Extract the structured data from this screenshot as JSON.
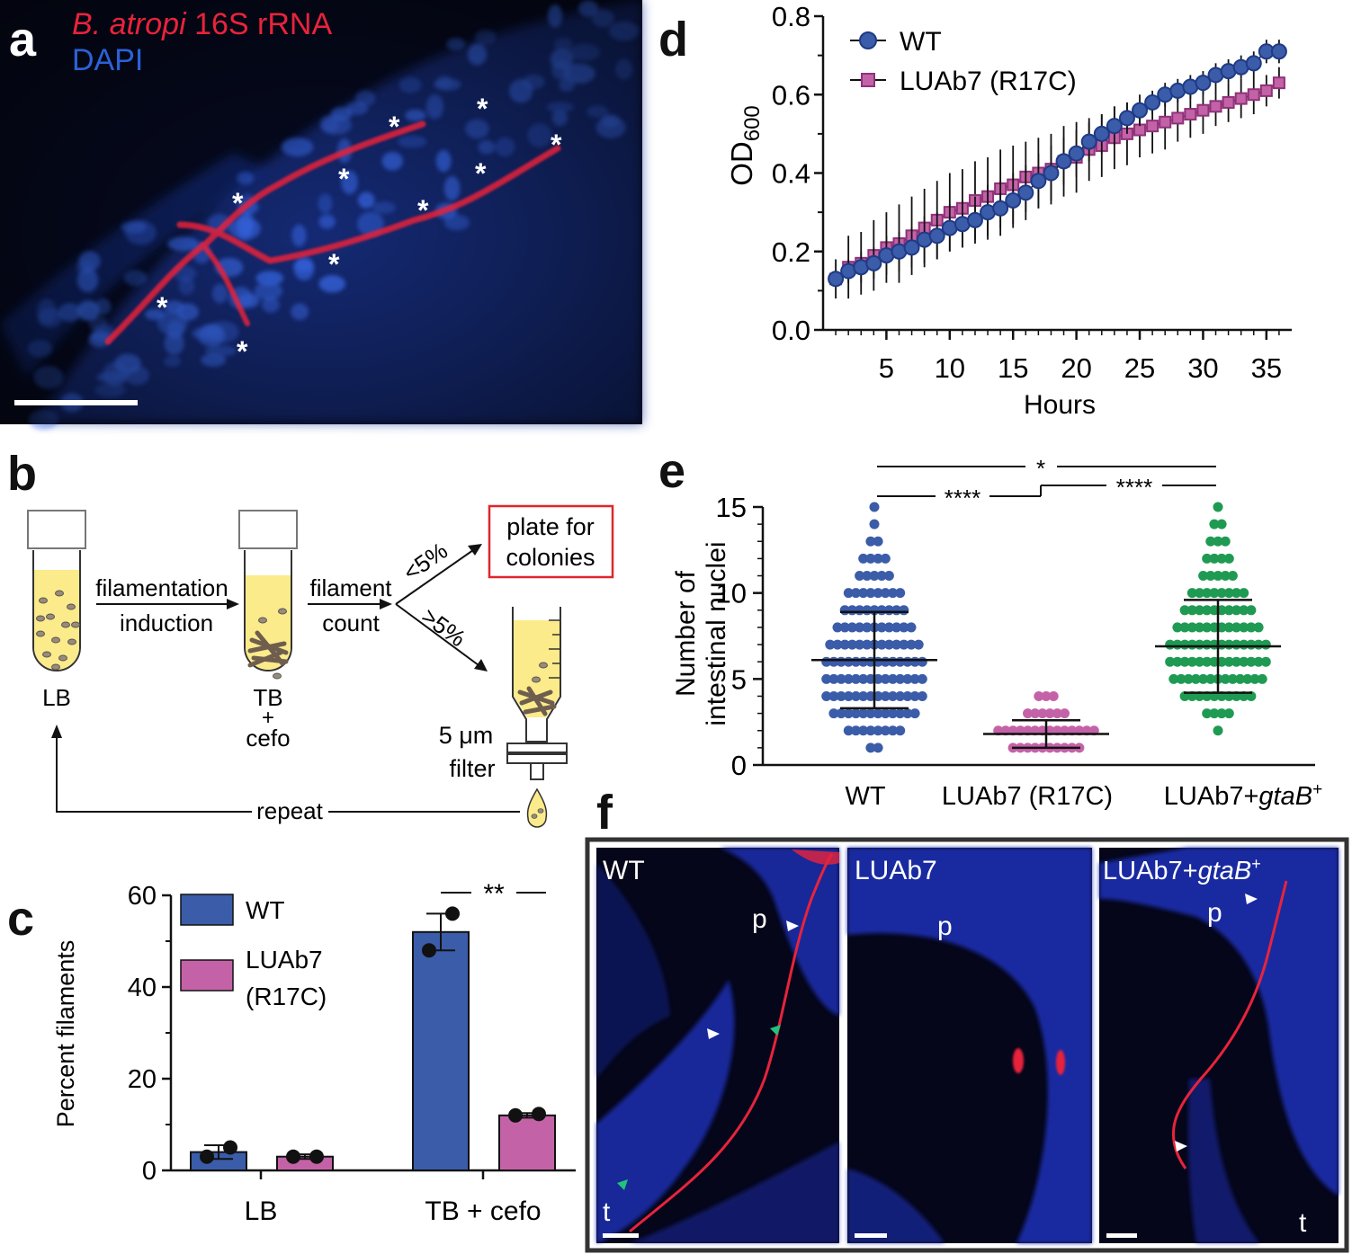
{
  "colors": {
    "wt": "#3b5ca8",
    "wt_dark": "#1f3a86",
    "mutant": "#c462a8",
    "mutant_dark": "#8f3278",
    "rescue": "#1f9a52",
    "fish_red": "#e8233b",
    "dapi_blue": "#2c61d8",
    "micro_bg": "#06091c",
    "tube_fill": "#fbeb8a",
    "plate_box": "#e0262c"
  },
  "panel_letters": {
    "a": "a",
    "b": "b",
    "c": "c",
    "d": "d",
    "e": "e",
    "f": "f"
  },
  "panel_a": {
    "label_species": "B. atropi",
    "label_probe": " 16S rRNA",
    "label_dapi": "DAPI",
    "asterisks": [
      "*",
      "*",
      "*",
      "*",
      "*",
      "*",
      "*",
      "*",
      "*",
      "*"
    ]
  },
  "panel_b": {
    "tube1_label": "LB",
    "tube2_label_top": "TB",
    "tube2_label_plus": "+",
    "tube2_label_bottom": "cefo",
    "arrow1_top": "filamentation",
    "arrow1_bottom": "induction",
    "arrow2_top": "filament",
    "arrow2_bottom": "count",
    "branch_low": "<5%",
    "branch_high": ">5%",
    "plate_line1": "plate for",
    "plate_line2": "colonies",
    "filter_line1": "5 μm",
    "filter_line2": "filter",
    "repeat_label": "repeat"
  },
  "chart_data": [
    {
      "id": "c",
      "type": "bar",
      "title": "",
      "xlabel": "",
      "ylabel": "Percent filaments",
      "categories": [
        "LB",
        "TB + cefo"
      ],
      "ylim": [
        0,
        60
      ],
      "yticks": [
        0,
        20,
        40,
        60
      ],
      "series": [
        {
          "name": "WT",
          "values": [
            4,
            52
          ],
          "errors": [
            1.5,
            4
          ],
          "replicates": [
            [
              3,
              5
            ],
            [
              48,
              56
            ]
          ]
        },
        {
          "name": "LUAb7 (R17C)",
          "values": [
            3,
            12
          ],
          "errors": [
            0.5,
            0.5
          ],
          "replicates": [
            [
              3,
              3
            ],
            [
              12,
              12.3
            ]
          ]
        }
      ],
      "legend": [
        "WT",
        "LUAb7",
        "(R17C)"
      ],
      "significance": "**",
      "legend_position": "top-left"
    },
    {
      "id": "d",
      "type": "line",
      "title": "",
      "xlabel": "Hours",
      "ylabel": "OD",
      "ylabel_sub": "600",
      "xlim": [
        0,
        37
      ],
      "ylim": [
        0,
        0.8
      ],
      "xticks": [
        5,
        10,
        15,
        20,
        25,
        30,
        35
      ],
      "yticks": [
        0.0,
        0.2,
        0.4,
        0.6,
        0.8
      ],
      "ytick_labels": [
        "0.0",
        "0.2",
        "0.4",
        "0.6",
        "0.8"
      ],
      "legend_position": "top-left",
      "series": [
        {
          "name": "WT",
          "x": [
            1,
            2,
            3,
            4,
            5,
            6,
            7,
            8,
            9,
            10,
            11,
            12,
            13,
            14,
            15,
            16,
            17,
            18,
            19,
            20,
            21,
            22,
            23,
            24,
            25,
            26,
            27,
            28,
            29,
            30,
            31,
            32,
            33,
            34,
            35,
            36
          ],
          "values": [
            0.13,
            0.15,
            0.16,
            0.17,
            0.19,
            0.2,
            0.21,
            0.23,
            0.24,
            0.26,
            0.27,
            0.28,
            0.3,
            0.31,
            0.33,
            0.35,
            0.38,
            0.4,
            0.43,
            0.45,
            0.48,
            0.5,
            0.52,
            0.54,
            0.56,
            0.58,
            0.6,
            0.61,
            0.62,
            0.63,
            0.65,
            0.66,
            0.67,
            0.68,
            0.71,
            0.71
          ],
          "err": [
            0.01,
            0.03,
            0.04,
            0.04,
            0.05,
            0.05,
            0.05,
            0.06,
            0.06,
            0.06,
            0.06,
            0.06,
            0.07,
            0.07,
            0.07,
            0.07,
            0.07,
            0.07,
            0.06,
            0.06,
            0.05,
            0.05,
            0.05,
            0.04,
            0.04,
            0.03,
            0.03,
            0.03,
            0.03,
            0.03,
            0.03,
            0.03,
            0.03,
            0.03,
            0.03,
            0.03
          ]
        },
        {
          "name": "LUAb7 (R17C)",
          "x": [
            1,
            2,
            3,
            4,
            5,
            6,
            7,
            8,
            9,
            10,
            11,
            12,
            13,
            14,
            15,
            16,
            17,
            18,
            19,
            20,
            21,
            22,
            23,
            24,
            25,
            26,
            27,
            28,
            29,
            30,
            31,
            32,
            33,
            34,
            35,
            36
          ],
          "values": [
            0.13,
            0.16,
            0.17,
            0.19,
            0.21,
            0.22,
            0.24,
            0.26,
            0.28,
            0.3,
            0.31,
            0.33,
            0.34,
            0.36,
            0.37,
            0.39,
            0.4,
            0.41,
            0.43,
            0.44,
            0.46,
            0.47,
            0.49,
            0.5,
            0.51,
            0.52,
            0.53,
            0.54,
            0.55,
            0.56,
            0.57,
            0.58,
            0.59,
            0.6,
            0.61,
            0.63
          ],
          "err": [
            0.05,
            0.08,
            0.08,
            0.09,
            0.09,
            0.1,
            0.1,
            0.1,
            0.1,
            0.1,
            0.1,
            0.1,
            0.1,
            0.1,
            0.1,
            0.09,
            0.09,
            0.09,
            0.09,
            0.09,
            0.08,
            0.08,
            0.08,
            0.08,
            0.07,
            0.07,
            0.07,
            0.06,
            0.06,
            0.06,
            0.05,
            0.05,
            0.05,
            0.05,
            0.04,
            0.04
          ]
        }
      ]
    },
    {
      "id": "e",
      "type": "scatter",
      "title": "",
      "xlabel": "",
      "ylabel_line1": "Number of",
      "ylabel_line2": "intestinal nuclei",
      "categories": [
        "WT",
        "LUAb7 (R17C)",
        "LUAb7+gtaB+"
      ],
      "category_label_rescue_prefix": "LUAb7+",
      "category_label_rescue_gene": "gtaB",
      "category_label_rescue_sup": "+",
      "ylim": [
        0,
        15
      ],
      "yticks": [
        0,
        5,
        10,
        15
      ],
      "series": [
        {
          "name": "WT",
          "mean": 6.1,
          "sd": 2.8,
          "min": 1,
          "max": 15
        },
        {
          "name": "LUAb7 (R17C)",
          "mean": 1.8,
          "sd": 0.8,
          "min": 1,
          "max": 4
        },
        {
          "name": "LUAb7+gtaB+",
          "mean": 6.9,
          "sd": 2.7,
          "min": 2,
          "max": 15
        }
      ],
      "significance": [
        {
          "pair": [
            0,
            1
          ],
          "label": "****"
        },
        {
          "pair": [
            1,
            2
          ],
          "label": "****"
        },
        {
          "pair": [
            0,
            2
          ],
          "label": "*"
        }
      ]
    }
  ],
  "panel_f": {
    "subpanels": [
      {
        "title": "WT",
        "label_p": "p",
        "label_t": "t"
      },
      {
        "title": "LUAb7",
        "label_p": "p"
      },
      {
        "title_prefix": "LUAb7+",
        "title_gene": "gtaB",
        "title_sup": "+",
        "label_p": "p",
        "label_t": "t"
      }
    ]
  }
}
